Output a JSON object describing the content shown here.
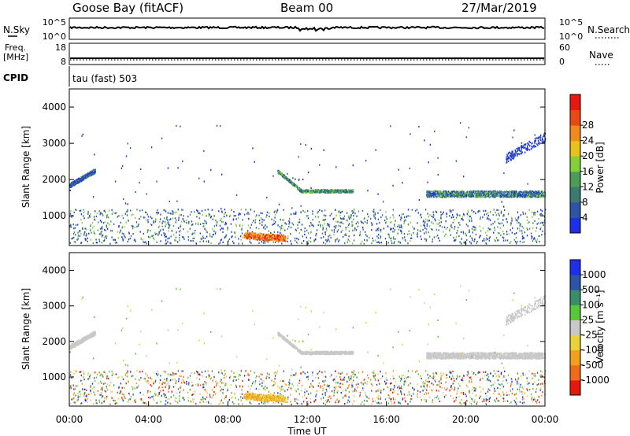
{
  "header": {
    "station": "Goose Bay (fitACF)",
    "beam": "Beam 00",
    "date": "27/Mar/2019"
  },
  "top_panels": {
    "nsky": {
      "label": "N.Sky",
      "right_label": "N.Search",
      "left_ticks": [
        "10^5",
        "10^0"
      ],
      "right_ticks": [
        "10^5",
        "10^0"
      ]
    },
    "freq": {
      "label_line1": "Freq.",
      "label_line2": "[MHz]",
      "left_ticks": [
        "18",
        "8"
      ],
      "right_label": "Nave",
      "right_ticks": [
        "60",
        "0"
      ]
    },
    "cpid": {
      "label": "CPID",
      "text": "tau (fast) 503"
    }
  },
  "colors": {
    "power_bar": [
      "#1f2fe8",
      "#2e55a5",
      "#3a7a73",
      "#4c9c58",
      "#86cf3c",
      "#e8c21a",
      "#f08a1c",
      "#e84a16",
      "#e81810"
    ],
    "velocity_bar": [
      "#e81810",
      "#f06a1c",
      "#f0a01c",
      "#e8d23a",
      "#c8c8c8",
      "#58c83a",
      "#3a8c6a",
      "#2e55a5",
      "#1f2fe8"
    ]
  },
  "chart_data": [
    {
      "type": "heatmap",
      "name": "power",
      "ylabel": "Slant Range [km]",
      "y_ticks": [
        1000,
        2000,
        3000,
        4000
      ],
      "ylim": [
        180,
        4500
      ],
      "xlim_hours": [
        0,
        24
      ],
      "colorbar": {
        "label": "Power [dB]",
        "ticks": [
          "4",
          "8",
          "12",
          "16",
          "20",
          "24",
          "28"
        ],
        "range": [
          0,
          32
        ]
      }
    },
    {
      "type": "heatmap",
      "name": "velocity",
      "ylabel": "Slant Range [km]",
      "y_ticks": [
        1000,
        2000,
        3000,
        4000
      ],
      "ylim": [
        180,
        4500
      ],
      "xlim_hours": [
        0,
        24
      ],
      "xlabel": "Time UT",
      "x_ticks": [
        "00:00",
        "04:00",
        "08:00",
        "12:00",
        "16:00",
        "20:00",
        "00:00"
      ],
      "colorbar": {
        "label": "Velocity [m s⁻¹]",
        "ticks": [
          "1000",
          "500",
          "100",
          "25",
          "-25",
          "-100",
          "-500",
          "-1000"
        ]
      }
    }
  ]
}
